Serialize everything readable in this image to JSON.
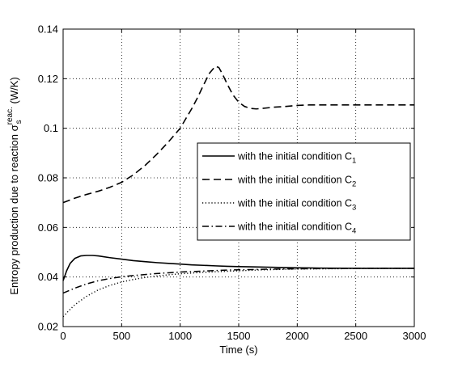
{
  "chart_data": {
    "type": "line",
    "xlabel": "Time (s)",
    "ylabel": {
      "main": "Entropy production due to reaction σ",
      "subscript": "s",
      "superscript": "reac.",
      "unit": " (W/K)"
    },
    "xlim": [
      0,
      3000
    ],
    "ylim": [
      0.02,
      0.14
    ],
    "x_ticks": [
      "0",
      "500",
      "1000",
      "1500",
      "2000",
      "2500",
      "3000"
    ],
    "y_ticks": [
      "0.02",
      "0.04",
      "0.06",
      "0.08",
      "0.1",
      "0.12",
      "0.14"
    ],
    "grid": true,
    "legend": "center-right",
    "series": [
      {
        "name": "with the initial condition C",
        "name_subscript": "1",
        "style": "solid",
        "points": [
          [
            0,
            0.0385
          ],
          [
            30,
            0.0425
          ],
          [
            60,
            0.0455
          ],
          [
            100,
            0.0475
          ],
          [
            150,
            0.0485
          ],
          [
            200,
            0.0487
          ],
          [
            250,
            0.0487
          ],
          [
            300,
            0.0485
          ],
          [
            400,
            0.0478
          ],
          [
            500,
            0.0472
          ],
          [
            600,
            0.0466
          ],
          [
            700,
            0.0462
          ],
          [
            800,
            0.0458
          ],
          [
            900,
            0.0455
          ],
          [
            1000,
            0.0452
          ],
          [
            1100,
            0.0449
          ],
          [
            1200,
            0.0447
          ],
          [
            1300,
            0.0445
          ],
          [
            1400,
            0.0443
          ],
          [
            1500,
            0.0442
          ],
          [
            1600,
            0.0441
          ],
          [
            1800,
            0.0439
          ],
          [
            2000,
            0.0437
          ],
          [
            2200,
            0.0436
          ],
          [
            2500,
            0.0435
          ],
          [
            2800,
            0.0435
          ],
          [
            3000,
            0.0435
          ]
        ]
      },
      {
        "name": "with the initial condition C",
        "name_subscript": "2",
        "style": "dashed",
        "points": [
          [
            0,
            0.07
          ],
          [
            100,
            0.0718
          ],
          [
            200,
            0.0733
          ],
          [
            300,
            0.0746
          ],
          [
            400,
            0.0762
          ],
          [
            500,
            0.0782
          ],
          [
            600,
            0.0812
          ],
          [
            700,
            0.085
          ],
          [
            800,
            0.0895
          ],
          [
            900,
            0.0945
          ],
          [
            1000,
            0.1
          ],
          [
            1050,
            0.104
          ],
          [
            1100,
            0.108
          ],
          [
            1150,
            0.1125
          ],
          [
            1200,
            0.1175
          ],
          [
            1250,
            0.1222
          ],
          [
            1300,
            0.125
          ],
          [
            1330,
            0.1245
          ],
          [
            1360,
            0.122
          ],
          [
            1400,
            0.118
          ],
          [
            1450,
            0.1135
          ],
          [
            1500,
            0.1105
          ],
          [
            1550,
            0.1088
          ],
          [
            1600,
            0.108
          ],
          [
            1650,
            0.1078
          ],
          [
            1700,
            0.108
          ],
          [
            1800,
            0.1085
          ],
          [
            1900,
            0.1088
          ],
          [
            2000,
            0.1092
          ],
          [
            2100,
            0.1094
          ],
          [
            2500,
            0.1094
          ],
          [
            3000,
            0.1094
          ]
        ]
      },
      {
        "name": "with the initial condition C",
        "name_subscript": "3",
        "style": "dotted",
        "points": [
          [
            0,
            0.024
          ],
          [
            50,
            0.0265
          ],
          [
            100,
            0.0288
          ],
          [
            200,
            0.0322
          ],
          [
            300,
            0.0348
          ],
          [
            400,
            0.0366
          ],
          [
            500,
            0.038
          ],
          [
            600,
            0.039
          ],
          [
            700,
            0.0398
          ],
          [
            800,
            0.0404
          ],
          [
            900,
            0.0409
          ],
          [
            1000,
            0.0413
          ],
          [
            1100,
            0.0416
          ],
          [
            1200,
            0.0419
          ],
          [
            1300,
            0.0421
          ],
          [
            1400,
            0.0423
          ],
          [
            1500,
            0.0425
          ],
          [
            1600,
            0.0427
          ],
          [
            1800,
            0.043
          ],
          [
            2000,
            0.0432
          ],
          [
            2200,
            0.0433
          ],
          [
            2500,
            0.0434
          ],
          [
            3000,
            0.0435
          ]
        ]
      },
      {
        "name": "with the initial condition C",
        "name_subscript": "4",
        "style": "dashdot",
        "points": [
          [
            0,
            0.0335
          ],
          [
            100,
            0.0355
          ],
          [
            200,
            0.0372
          ],
          [
            300,
            0.0385
          ],
          [
            400,
            0.0394
          ],
          [
            500,
            0.0401
          ],
          [
            600,
            0.0406
          ],
          [
            700,
            0.041
          ],
          [
            800,
            0.0414
          ],
          [
            900,
            0.0417
          ],
          [
            1000,
            0.042
          ],
          [
            1100,
            0.0422
          ],
          [
            1200,
            0.0424
          ],
          [
            1300,
            0.0426
          ],
          [
            1400,
            0.0428
          ],
          [
            1500,
            0.0429
          ],
          [
            1600,
            0.043
          ],
          [
            1800,
            0.0432
          ],
          [
            2000,
            0.0433
          ],
          [
            2200,
            0.0434
          ],
          [
            2500,
            0.0435
          ],
          [
            3000,
            0.0435
          ]
        ]
      }
    ]
  }
}
